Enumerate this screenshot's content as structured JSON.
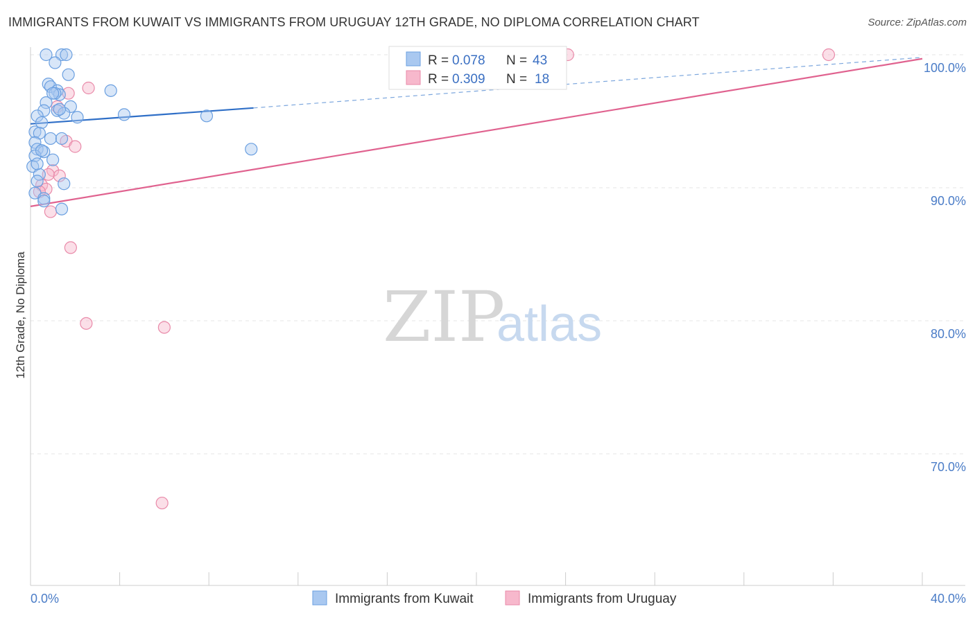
{
  "title": "IMMIGRANTS FROM KUWAIT VS IMMIGRANTS FROM URUGUAY 12TH GRADE, NO DIPLOMA CORRELATION CHART",
  "source": "Source: ZipAtlas.com",
  "watermark": {
    "part1": "ZIP",
    "part2": "atlas"
  },
  "legend_box": {
    "rows": [
      {
        "r_label": "R = ",
        "r_value": "0.078",
        "n_label": "N = ",
        "n_value": "43",
        "color": "#a9c8f0"
      },
      {
        "r_label": "R = ",
        "r_value": "0.309",
        "n_label": "N = ",
        "n_value": "18",
        "color": "#f7b8cc"
      }
    ]
  },
  "bottom_legend": [
    {
      "label": "Immigrants from Kuwait",
      "color": "#a9c8f0"
    },
    {
      "label": "Immigrants from Uruguay",
      "color": "#f7b8cc"
    }
  ],
  "chart_data": {
    "type": "scatter",
    "ylabel": "12th Grade, No Diploma",
    "xlabel": "",
    "xlim": [
      0,
      40
    ],
    "ylim": [
      60,
      101
    ],
    "x_tick_labels": [
      {
        "value": 0,
        "label": "0.0%"
      },
      {
        "value": 40,
        "label": "40.0%"
      }
    ],
    "y_tick_labels": [
      {
        "value": 100,
        "label": "100.0%"
      },
      {
        "value": 90,
        "label": "90.0%"
      },
      {
        "value": 80,
        "label": "80.0%"
      },
      {
        "value": 70,
        "label": "70.0%"
      }
    ],
    "grid": true,
    "series": [
      {
        "name": "Immigrants from Kuwait",
        "color": "#6a9fe0",
        "fill": "#a9c8f0",
        "trend": {
          "x0": 0,
          "y0": 94.8,
          "x1": 10,
          "y1": 96.0,
          "dash_to_x": 40,
          "dash_to_y": 99.8,
          "color": "#2f6fc7"
        },
        "points": [
          [
            0.7,
            100.0
          ],
          [
            1.4,
            100.0
          ],
          [
            1.6,
            100.0
          ],
          [
            1.1,
            99.4
          ],
          [
            1.7,
            98.5
          ],
          [
            0.8,
            97.8
          ],
          [
            0.9,
            97.6
          ],
          [
            1.2,
            97.3
          ],
          [
            1.3,
            97.0
          ],
          [
            1.1,
            97.1
          ],
          [
            3.6,
            97.3
          ],
          [
            0.7,
            96.4
          ],
          [
            1.2,
            95.8
          ],
          [
            1.8,
            96.1
          ],
          [
            0.6,
            95.8
          ],
          [
            1.5,
            95.6
          ],
          [
            2.1,
            95.3
          ],
          [
            4.2,
            95.5
          ],
          [
            7.9,
            95.4
          ],
          [
            0.3,
            95.4
          ],
          [
            0.5,
            94.9
          ],
          [
            0.2,
            94.2
          ],
          [
            0.4,
            94.1
          ],
          [
            0.9,
            93.7
          ],
          [
            1.4,
            93.7
          ],
          [
            0.2,
            93.4
          ],
          [
            0.3,
            92.9
          ],
          [
            0.6,
            92.7
          ],
          [
            0.2,
            92.4
          ],
          [
            1.0,
            92.1
          ],
          [
            9.9,
            92.9
          ],
          [
            0.1,
            91.6
          ],
          [
            0.4,
            91.0
          ],
          [
            0.3,
            90.5
          ],
          [
            1.5,
            90.3
          ],
          [
            0.2,
            89.6
          ],
          [
            0.6,
            89.2
          ],
          [
            1.4,
            88.4
          ],
          [
            0.6,
            89.0
          ],
          [
            1.0,
            97.1
          ],
          [
            0.5,
            92.8
          ],
          [
            1.3,
            95.9
          ],
          [
            0.3,
            91.8
          ]
        ]
      },
      {
        "name": "Immigrants from Uruguay",
        "color": "#e98aa9",
        "fill": "#f7b8cc",
        "trend": {
          "x0": 0,
          "y0": 88.6,
          "x1": 40,
          "y1": 99.7,
          "color": "#e0628f"
        },
        "points": [
          [
            24.1,
            100.0
          ],
          [
            35.8,
            100.0
          ],
          [
            2.6,
            97.5
          ],
          [
            1.7,
            97.1
          ],
          [
            1.2,
            96.1
          ],
          [
            1.6,
            93.5
          ],
          [
            2.0,
            93.1
          ],
          [
            1.0,
            91.3
          ],
          [
            1.3,
            90.9
          ],
          [
            0.5,
            90.2
          ],
          [
            0.7,
            89.9
          ],
          [
            0.9,
            88.2
          ],
          [
            1.8,
            85.5
          ],
          [
            2.5,
            79.8
          ],
          [
            6.0,
            79.5
          ],
          [
            5.9,
            66.3
          ],
          [
            0.8,
            91.0
          ],
          [
            0.4,
            89.7
          ]
        ]
      }
    ]
  }
}
